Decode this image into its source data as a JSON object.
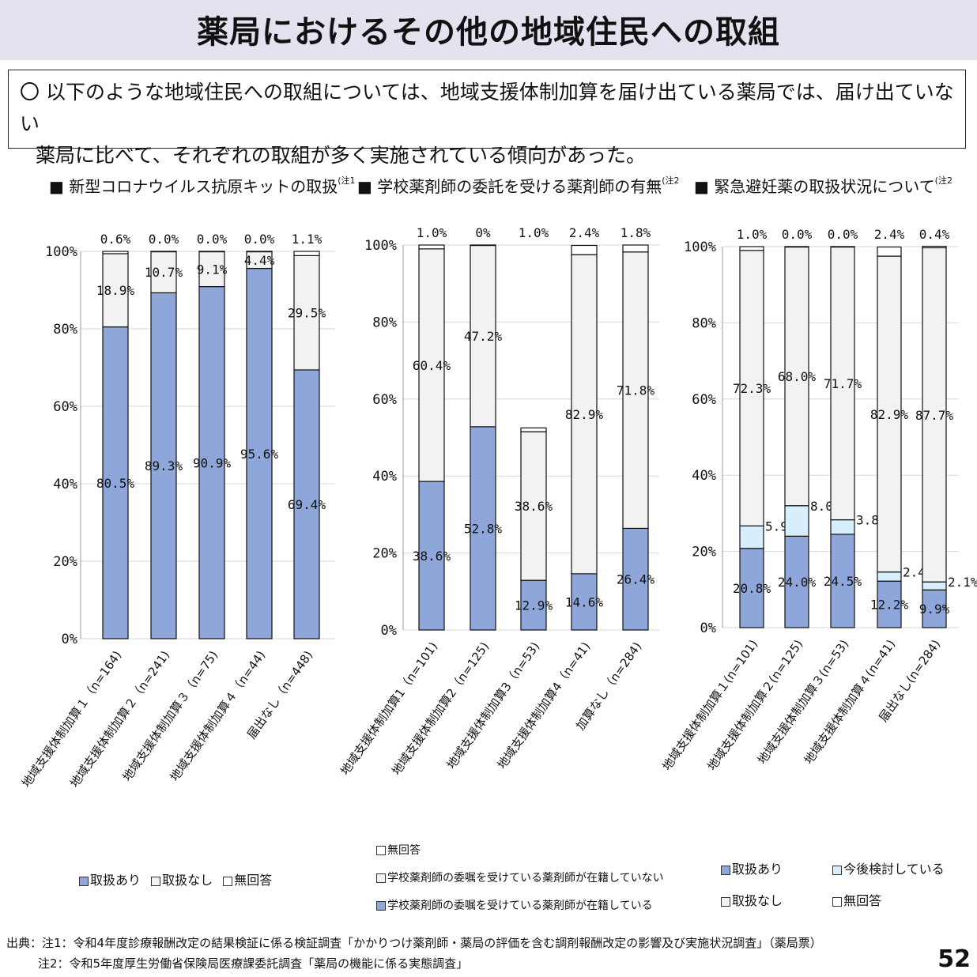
{
  "header": {
    "title": "薬局におけるその他の地域住民への取組",
    "summary_line1": "〇  以下のような地域住民への取組については、地域支援体制加算を届け出ている薬局では、届け出ていない",
    "summary_line2": "薬局に比べて、それぞれの取組が多く実施されている傾向があった。"
  },
  "colors": {
    "取扱あり": "#8ea6d9",
    "取扱なし": "#f2f2f2",
    "無回答": "#ffffff",
    "今後検討している": "#d7eefc"
  },
  "chart_data": [
    {
      "type": "bar",
      "stacked": true,
      "title": "■  新型コロナウイルス抗原キットの取扱",
      "title_note": "(注1",
      "yticks": [
        "0%",
        "20%",
        "40%",
        "60%",
        "80%",
        "100%"
      ],
      "ylim": [
        0,
        100
      ],
      "categories": [
        "地域支援体制加算１（n=164)",
        "地域支援体制加算２（n=241)",
        "地域支援体制加算３（n=75)",
        "地域支援体制加算４（n=44)",
        "届出なし（n=448)"
      ],
      "series": [
        {
          "name": "取扱あり",
          "values": [
            80.5,
            89.3,
            90.9,
            95.6,
            69.4
          ],
          "labels": [
            "80.5%",
            "89.3%",
            "90.9%",
            "95.6%",
            "69.4%"
          ]
        },
        {
          "name": "取扱なし",
          "values": [
            18.9,
            10.7,
            9.1,
            4.4,
            29.5
          ],
          "labels": [
            "18.9%",
            "10.7%",
            "9.1%",
            "4.4%",
            "29.5%"
          ]
        },
        {
          "name": "無回答",
          "values": [
            0.6,
            0.0,
            0.0,
            0.0,
            1.1
          ],
          "labels": [
            "0.6%",
            "0.0%",
            "0.0%",
            "0.0%",
            "1.1%"
          ]
        }
      ],
      "legend": [
        "取扱あり",
        "取扱なし",
        "無回答"
      ]
    },
    {
      "type": "bar",
      "stacked": true,
      "title": "■  学校薬剤師の委託を受ける薬剤師の有無",
      "title_note": "(注2",
      "yticks": [
        "0%",
        "20%",
        "40%",
        "60%",
        "80%",
        "100%"
      ],
      "ylim": [
        0,
        100
      ],
      "categories": [
        "地域支援体制加算1（n=101)",
        "地域支援体制加算2（n=125)",
        "地域支援体制加算3（n=53)",
        "地域支援体制加算4（n=41)",
        "加算なし（n=284)"
      ],
      "series": [
        {
          "name": "学校薬剤師の委嘱を受けている薬剤師が在籍している",
          "values": [
            38.6,
            52.8,
            12.9,
            14.6,
            26.4
          ],
          "labels": [
            "38.6%",
            "52.8%",
            "12.9%",
            "14.6%",
            "26.4%"
          ]
        },
        {
          "name": "学校薬剤師の委嘱を受けている薬剤師が在籍していない",
          "values": [
            60.4,
            47.2,
            38.6,
            82.9,
            71.8
          ],
          "labels": [
            "60.4%",
            "47.2%",
            "38.6%",
            "82.9%",
            "71.8%"
          ]
        },
        {
          "name": "無回答",
          "values": [
            1.0,
            0,
            1.0,
            2.4,
            1.8
          ],
          "labels": [
            "1.0%",
            "0%",
            "1.0%",
            "2.4%",
            "1.8%"
          ]
        }
      ],
      "legend": [
        "無回答",
        "学校薬剤師の委嘱を受けている薬剤師が在籍していない",
        "学校薬剤師の委嘱を受けている薬剤師が在籍している"
      ]
    },
    {
      "type": "bar",
      "stacked": true,
      "title": "■  緊急避妊薬の取扱状況について",
      "title_note": "(注2",
      "yticks": [
        "0%",
        "20%",
        "40%",
        "60%",
        "80%",
        "100%"
      ],
      "ylim": [
        0,
        100
      ],
      "categories": [
        "地域支援体制加算１(n=101)",
        "地域支援体制加算２(n=125)",
        "地域支援体制加算３(n=53)",
        "地域支援体制加算４(n=41)",
        "届出なし(n=284)"
      ],
      "series": [
        {
          "name": "取扱あり",
          "values": [
            20.8,
            24.0,
            24.5,
            12.2,
            9.9
          ],
          "labels": [
            "20.8%",
            "24.0%",
            "24.5%",
            "12.2%",
            "9.9%"
          ]
        },
        {
          "name": "今後検討している",
          "values": [
            5.9,
            8.0,
            3.8,
            2.4,
            2.1
          ],
          "labels": [
            "5.9%",
            "8.0%",
            "3.8%",
            "2.4%",
            "2.1%"
          ]
        },
        {
          "name": "取扱なし",
          "values": [
            72.3,
            68.0,
            71.7,
            82.9,
            87.7
          ],
          "labels": [
            "72.3%",
            "68.0%",
            "71.7%",
            "82.9%",
            "87.7%"
          ]
        },
        {
          "name": "無回答",
          "values": [
            1.0,
            0.0,
            0.0,
            2.4,
            0.4
          ],
          "labels": [
            "1.0%",
            "0.0%",
            "0.0%",
            "2.4%",
            "0.4%"
          ]
        }
      ],
      "legend": [
        "取扱あり",
        "今後検討している",
        "取扱なし",
        "無回答"
      ]
    }
  ],
  "footer": {
    "note1": "出典：注1：令和4年度診療報酬改定の結果検証に係る検証調査「かかりつけ薬剤師・薬局の評価を含む調剤報酬改定の影響及び実施状況調査」（薬局票）",
    "note2": "注2：令和5年度厚生労働省保険局医療課委託調査「薬局の機能に係る実態調査」",
    "page": "52"
  }
}
